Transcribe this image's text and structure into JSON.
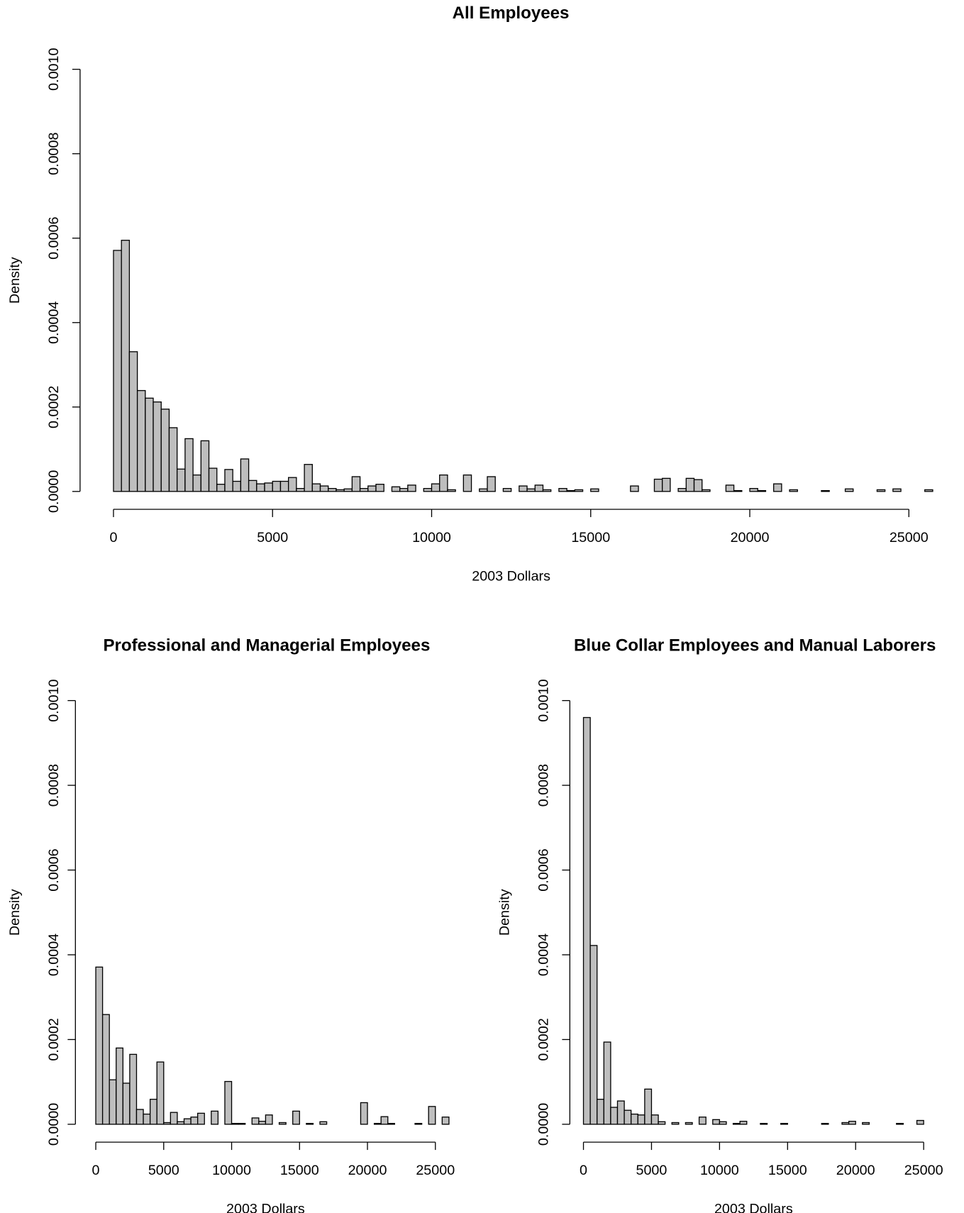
{
  "chart_data": [
    {
      "type": "histogram",
      "title": "All Employees",
      "x_label": "2003 Dollars",
      "y_label": "Density",
      "color": "#bebebe",
      "bins": [
        0,
        250,
        500,
        750,
        1000,
        1250,
        1500,
        1750,
        2000,
        2250,
        2500,
        2750,
        3000,
        3250,
        3500,
        3750,
        4000,
        4250,
        4500,
        4750,
        5000,
        5250,
        5500,
        5750,
        6000,
        6250,
        6500,
        6750,
        7000,
        7250,
        7500,
        7750,
        8000,
        8250,
        8500,
        8750,
        9000,
        9250,
        9500,
        9750,
        10000,
        10250,
        10500,
        10750,
        11000,
        11250,
        11500,
        11750,
        12000,
        12250,
        12500,
        12750,
        13000,
        13250,
        13500,
        13750,
        14000,
        14250,
        14500,
        14750,
        15000,
        15250,
        15500,
        15750,
        16000,
        16250,
        16500,
        16750,
        17000,
        17250,
        17500,
        17750,
        18000,
        18250,
        18500,
        18750,
        19000,
        19250,
        19500,
        19750,
        20000,
        20250,
        20500,
        20750,
        21000,
        21250,
        21500,
        21750,
        22000,
        22250,
        22500,
        22750,
        23000,
        23250,
        23500,
        23750,
        24000,
        24250,
        24500,
        24750,
        25000,
        25250,
        25500,
        25750,
        26000
      ],
      "values": [
        0.000571,
        0.000595,
        0.000331,
        0.000239,
        0.000221,
        0.000212,
        0.000195,
        0.000151,
        5.3e-05,
        0.000125,
        3.9e-05,
        0.00012,
        5.5e-05,
        1.7e-05,
        5.2e-05,
        2.4e-05,
        7.7e-05,
        2.6e-05,
        1.8e-05,
        2e-05,
        2.4e-05,
        2.4e-05,
        3.3e-05,
        7e-06,
        6.4e-05,
        1.8e-05,
        1.3e-05,
        7e-06,
        4e-06,
        6e-06,
        3.5e-05,
        7e-06,
        1.3e-05,
        1.7e-05,
        0,
        1.1e-05,
        7e-06,
        1.5e-05,
        0,
        7e-06,
        1.8e-05,
        3.9e-05,
        4e-06,
        0,
        3.9e-05,
        0,
        6e-06,
        3.5e-05,
        0,
        7e-06,
        0,
        1.3e-05,
        6e-06,
        1.5e-05,
        4e-06,
        0,
        7e-06,
        2e-06,
        4e-06,
        0,
        6e-06,
        0,
        0,
        0,
        0,
        1.3e-05,
        0,
        0,
        2.9e-05,
        3.1e-05,
        0,
        7e-06,
        3.1e-05,
        2.8e-05,
        4e-06,
        0,
        0,
        1.5e-05,
        2e-06,
        0,
        7e-06,
        2e-06,
        0,
        1.8e-05,
        0,
        4e-06,
        0,
        0,
        0,
        2e-06,
        0,
        0,
        6e-06,
        0,
        0,
        0,
        4e-06,
        0,
        6e-06,
        0,
        0,
        0,
        4e-06,
        0
      ],
      "xlim": [
        -1050,
        26000
      ],
      "ylim": [
        0,
        0.001
      ],
      "xticks": [
        0,
        5000,
        10000,
        15000,
        20000,
        25000
      ],
      "yticks": [
        {
          "value": 0,
          "label": "0.0000"
        },
        {
          "value": 0.0002,
          "label": "0.0002"
        },
        {
          "value": 0.0004,
          "label": "0.0004"
        },
        {
          "value": 0.0006,
          "label": "0.0006"
        },
        {
          "value": 0.0008,
          "label": "0.0008"
        },
        {
          "value": 0.001,
          "label": "0.0010"
        }
      ]
    },
    {
      "type": "histogram",
      "title": "Professional and Managerial Employees",
      "x_label": "2003 Dollars",
      "y_label": "Density",
      "color": "#bebebe",
      "bins": [
        0,
        500,
        1000,
        1500,
        2000,
        2500,
        3000,
        3500,
        4000,
        4500,
        5000,
        5500,
        6000,
        6500,
        7000,
        7500,
        8000,
        8500,
        9000,
        9500,
        10000,
        10500,
        11000,
        11500,
        12000,
        12500,
        13000,
        13500,
        14000,
        14500,
        15000,
        15500,
        16000,
        16500,
        17000,
        17500,
        18000,
        18500,
        19000,
        19500,
        20000,
        20500,
        21000,
        21500,
        22000,
        22500,
        23000,
        23500,
        24000,
        24500,
        25000,
        25500,
        26000
      ],
      "values": [
        0.000371,
        0.000259,
        0.000105,
        0.00018,
        9.7e-05,
        0.000165,
        3.5e-05,
        2.4e-05,
        5.9e-05,
        0.000147,
        4e-06,
        2.8e-05,
        6e-06,
        1.3e-05,
        1.7e-05,
        2.6e-05,
        0,
        3.1e-05,
        0,
        0.000101,
        2e-06,
        2e-06,
        0,
        1.5e-05,
        7e-06,
        2.2e-05,
        0,
        4e-06,
        0,
        3.1e-05,
        0,
        2e-06,
        0,
        6e-06,
        0,
        0,
        0,
        0,
        0,
        5.1e-05,
        0,
        2e-06,
        1.8e-05,
        2e-06,
        0,
        0,
        0,
        2e-06,
        0,
        4.2e-05,
        0,
        1.7e-05
      ],
      "xlim": [
        -1500,
        26200
      ],
      "ylim": [
        0,
        0.001
      ],
      "xticks": [
        0,
        5000,
        10000,
        15000,
        20000,
        25000
      ],
      "yticks": [
        {
          "value": 0,
          "label": "0.0000"
        },
        {
          "value": 0.0002,
          "label": "0.0002"
        },
        {
          "value": 0.0004,
          "label": "0.0004"
        },
        {
          "value": 0.0006,
          "label": "0.0006"
        },
        {
          "value": 0.0008,
          "label": "0.0008"
        },
        {
          "value": 0.001,
          "label": "0.0010"
        }
      ]
    },
    {
      "type": "histogram",
      "title": "Blue Collar Employees and Manual Laborers",
      "x_label": "2003 Dollars",
      "y_label": "Density",
      "color": "#bebebe",
      "bins": [
        0,
        500,
        1000,
        1500,
        2000,
        2500,
        3000,
        3500,
        4000,
        4500,
        5000,
        5500,
        6000,
        6500,
        7000,
        7500,
        8000,
        8500,
        9000,
        9500,
        10000,
        10500,
        11000,
        11500,
        12000,
        12500,
        13000,
        13500,
        14000,
        14500,
        15000,
        15500,
        16000,
        16500,
        17000,
        17500,
        18000,
        18500,
        19000,
        19500,
        20000,
        20500,
        21000,
        21500,
        22000,
        22500,
        23000,
        23500,
        24000,
        24500,
        25000
      ],
      "values": [
        0.00096,
        0.000422,
        5.9e-05,
        0.000194,
        4e-05,
        5.5e-05,
        3.3e-05,
        2.4e-05,
        2.2e-05,
        8.3e-05,
        2.2e-05,
        6e-06,
        0,
        4e-06,
        0,
        4e-06,
        0,
        1.7e-05,
        0,
        1.1e-05,
        6e-06,
        0,
        2e-06,
        7e-06,
        0,
        0,
        2e-06,
        0,
        0,
        2e-06,
        0,
        0,
        0,
        0,
        0,
        2e-06,
        0,
        0,
        4e-06,
        7e-06,
        0,
        4e-06,
        0,
        0,
        0,
        0,
        2e-06,
        0,
        0,
        9e-06
      ],
      "xlim": [
        -1000,
        26250
      ],
      "ylim": [
        0,
        0.001
      ],
      "xticks": [
        0,
        5000,
        10000,
        15000,
        20000,
        25000
      ],
      "yticks": [
        {
          "value": 0,
          "label": "0.0000"
        },
        {
          "value": 0.0002,
          "label": "0.0002"
        },
        {
          "value": 0.0004,
          "label": "0.0004"
        },
        {
          "value": 0.0006,
          "label": "0.0006"
        },
        {
          "value": 0.0008,
          "label": "0.0008"
        },
        {
          "value": 0.001,
          "label": "0.0010"
        }
      ]
    }
  ]
}
